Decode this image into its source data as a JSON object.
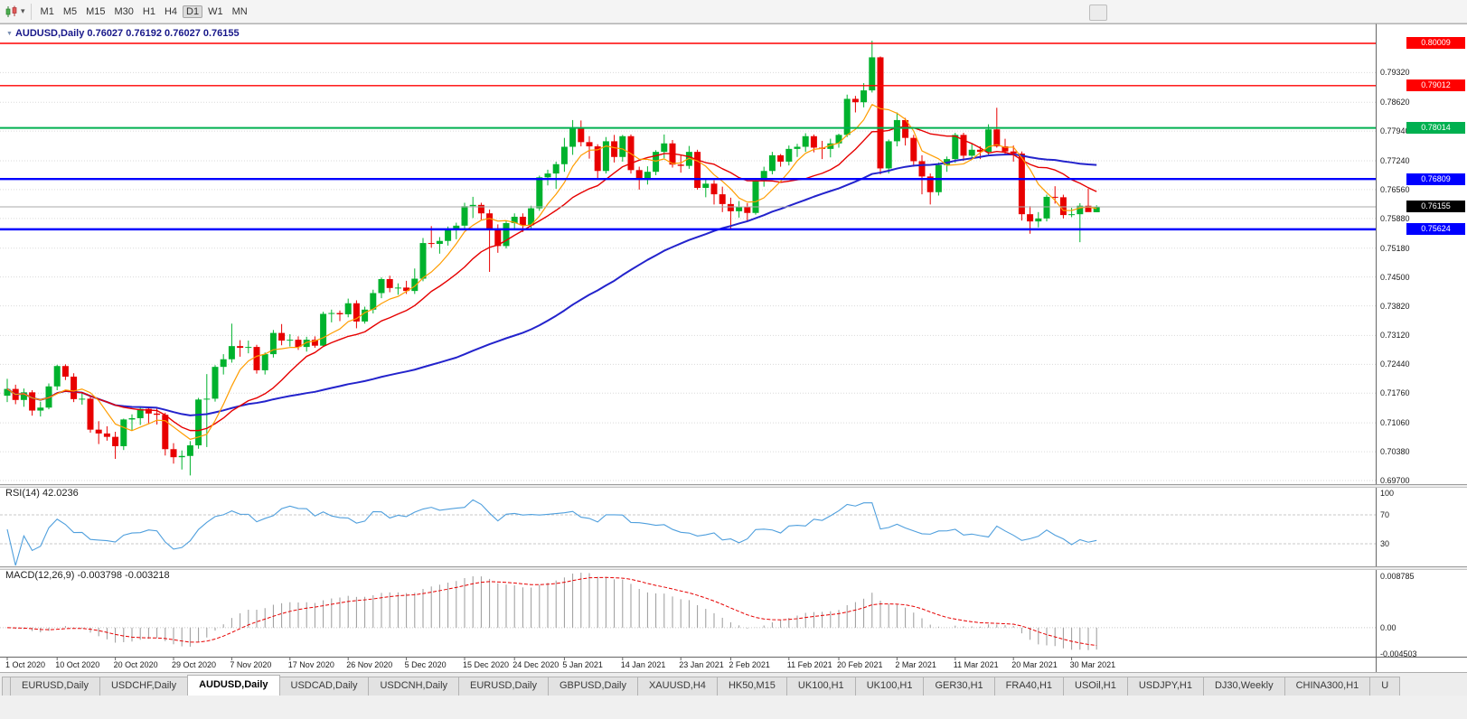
{
  "toolbar": {
    "periods": [
      "M1",
      "M5",
      "M15",
      "M30",
      "H1",
      "H4",
      "D1",
      "W1",
      "MN"
    ],
    "active": "D1"
  },
  "header": {
    "symbol_title": "AUDUSD,Daily",
    "ohlc": "0.76027 0.76192 0.76027 0.76155"
  },
  "chart_data": {
    "type": "candlestick",
    "symbol": "AUDUSD",
    "timeframe": "Daily",
    "ohlc_current": {
      "open": 0.76027,
      "high": 0.76192,
      "low": 0.76027,
      "close": 0.76155
    },
    "y_ticks": [
      "0.79320",
      "0.78620",
      "0.77940",
      "0.77240",
      "0.76560",
      "0.75880",
      "0.75180",
      "0.74500",
      "0.73820",
      "0.73120",
      "0.72440",
      "0.71760",
      "0.71060",
      "0.70380",
      "0.69700"
    ],
    "x_labels": [
      {
        "i": 0,
        "label": "1 Oct 2020"
      },
      {
        "i": 6,
        "label": "10 Oct 2020"
      },
      {
        "i": 13,
        "label": "20 Oct 2020"
      },
      {
        "i": 20,
        "label": "29 Oct 2020"
      },
      {
        "i": 27,
        "label": "7 Nov 2020"
      },
      {
        "i": 34,
        "label": "17 Nov 2020"
      },
      {
        "i": 41,
        "label": "26 Nov 2020"
      },
      {
        "i": 48,
        "label": "5 Dec 2020"
      },
      {
        "i": 55,
        "label": "15 Dec 2020"
      },
      {
        "i": 61,
        "label": "24 Dec 2020"
      },
      {
        "i": 67,
        "label": "5 Jan 2021"
      },
      {
        "i": 74,
        "label": "14 Jan 2021"
      },
      {
        "i": 81,
        "label": "23 Jan 2021"
      },
      {
        "i": 87,
        "label": "2 Feb 2021"
      },
      {
        "i": 94,
        "label": "11 Feb 2021"
      },
      {
        "i": 100,
        "label": "20 Feb 2021"
      },
      {
        "i": 107,
        "label": "2 Mar 2021"
      },
      {
        "i": 114,
        "label": "11 Mar 2021"
      },
      {
        "i": 121,
        "label": "20 Mar 2021"
      },
      {
        "i": 128,
        "label": "30 Mar 2021"
      }
    ],
    "hlines": [
      {
        "price": 0.80009,
        "label": "0.80009",
        "color": "#ff0000"
      },
      {
        "price": 0.79012,
        "label": "0.79012",
        "color": "#ff0000"
      },
      {
        "price": 0.78014,
        "label": "0.78014",
        "color": "#00b050"
      },
      {
        "price": 0.76809,
        "label": "0.76809",
        "color": "#0000ff"
      },
      {
        "price": 0.75624,
        "label": "0.75624",
        "color": "#0000ff"
      }
    ],
    "current_price": {
      "value": 0.76155,
      "label": "0.76155",
      "color": "#000000"
    },
    "moving_averages": [
      {
        "name": "fast",
        "period": 6,
        "color": "#ff9d00"
      },
      {
        "name": "medium",
        "period": 14,
        "color": "#e60000"
      },
      {
        "name": "slow",
        "period": 55,
        "color": "#2323cc"
      }
    ],
    "colors": {
      "bull": "#00b22d",
      "bear": "#e80000",
      "grid": "#dadada"
    },
    "candles": [
      [
        0.717,
        0.721,
        0.7155,
        0.7186
      ],
      [
        0.7186,
        0.7196,
        0.715,
        0.716
      ],
      [
        0.716,
        0.7187,
        0.7144,
        0.7178
      ],
      [
        0.7178,
        0.7183,
        0.7123,
        0.7135
      ],
      [
        0.7135,
        0.7156,
        0.7121,
        0.7142
      ],
      [
        0.7142,
        0.7199,
        0.7138,
        0.7192
      ],
      [
        0.7192,
        0.7243,
        0.7183,
        0.724
      ],
      [
        0.724,
        0.7244,
        0.7207,
        0.7215
      ],
      [
        0.7215,
        0.7223,
        0.7155,
        0.7162
      ],
      [
        0.7162,
        0.7176,
        0.7149,
        0.7163
      ],
      [
        0.7163,
        0.717,
        0.7083,
        0.709
      ],
      [
        0.709,
        0.711,
        0.7056,
        0.7081
      ],
      [
        0.7081,
        0.7098,
        0.7064,
        0.7073
      ],
      [
        0.7073,
        0.7085,
        0.7021,
        0.7051
      ],
      [
        0.7051,
        0.7116,
        0.7042,
        0.7114
      ],
      [
        0.7114,
        0.7126,
        0.7088,
        0.7117
      ],
      [
        0.7117,
        0.7143,
        0.7101,
        0.7139
      ],
      [
        0.7139,
        0.7144,
        0.7105,
        0.7128
      ],
      [
        0.7128,
        0.714,
        0.7102,
        0.7125
      ],
      [
        0.7125,
        0.713,
        0.7029,
        0.7044
      ],
      [
        0.7044,
        0.7058,
        0.701,
        0.7025
      ],
      [
        0.7025,
        0.7041,
        0.6996,
        0.7028
      ],
      [
        0.7028,
        0.7063,
        0.6982,
        0.7053
      ],
      [
        0.7053,
        0.7165,
        0.7045,
        0.7161
      ],
      [
        0.7161,
        0.7221,
        0.7049,
        0.7163
      ],
      [
        0.7163,
        0.7242,
        0.7156,
        0.7238
      ],
      [
        0.7238,
        0.7268,
        0.722,
        0.7256
      ],
      [
        0.7256,
        0.734,
        0.7248,
        0.7287
      ],
      [
        0.7287,
        0.7301,
        0.7262,
        0.7283
      ],
      [
        0.7283,
        0.73,
        0.727,
        0.7285
      ],
      [
        0.7285,
        0.729,
        0.7222,
        0.723
      ],
      [
        0.723,
        0.7272,
        0.722,
        0.7268
      ],
      [
        0.7268,
        0.7325,
        0.726,
        0.7318
      ],
      [
        0.7318,
        0.7339,
        0.7289,
        0.73
      ],
      [
        0.73,
        0.7315,
        0.7286,
        0.7302
      ],
      [
        0.7302,
        0.731,
        0.7278,
        0.7285
      ],
      [
        0.7285,
        0.7309,
        0.7274,
        0.7302
      ],
      [
        0.7302,
        0.731,
        0.7283,
        0.7288
      ],
      [
        0.7288,
        0.7368,
        0.7285,
        0.7363
      ],
      [
        0.7363,
        0.7373,
        0.7343,
        0.7365
      ],
      [
        0.7365,
        0.7371,
        0.7346,
        0.7362
      ],
      [
        0.7362,
        0.7399,
        0.7355,
        0.7388
      ],
      [
        0.7388,
        0.7395,
        0.7329,
        0.7345
      ],
      [
        0.7345,
        0.738,
        0.734,
        0.7373
      ],
      [
        0.7373,
        0.742,
        0.7364,
        0.7412
      ],
      [
        0.7412,
        0.7449,
        0.74,
        0.7445
      ],
      [
        0.7445,
        0.7453,
        0.7414,
        0.7424
      ],
      [
        0.7424,
        0.7435,
        0.7408,
        0.7425
      ],
      [
        0.7425,
        0.7441,
        0.741,
        0.7417
      ],
      [
        0.7417,
        0.747,
        0.741,
        0.7446
      ],
      [
        0.7446,
        0.7542,
        0.744,
        0.753
      ],
      [
        0.753,
        0.757,
        0.7519,
        0.7528
      ],
      [
        0.7528,
        0.7544,
        0.7505,
        0.7535
      ],
      [
        0.7535,
        0.7569,
        0.7524,
        0.756
      ],
      [
        0.756,
        0.7578,
        0.7539,
        0.7571
      ],
      [
        0.7571,
        0.7625,
        0.756,
        0.7617
      ],
      [
        0.7617,
        0.7639,
        0.7589,
        0.762
      ],
      [
        0.762,
        0.7625,
        0.7585,
        0.76
      ],
      [
        0.76,
        0.7609,
        0.7462,
        0.756
      ],
      [
        0.756,
        0.7574,
        0.7507,
        0.7523
      ],
      [
        0.7523,
        0.7582,
        0.7517,
        0.7577
      ],
      [
        0.7577,
        0.76,
        0.7564,
        0.7592
      ],
      [
        0.7592,
        0.76,
        0.7556,
        0.7572
      ],
      [
        0.7572,
        0.7618,
        0.7565,
        0.7612
      ],
      [
        0.7612,
        0.7689,
        0.7606,
        0.7685
      ],
      [
        0.7685,
        0.7703,
        0.7666,
        0.7694
      ],
      [
        0.7694,
        0.7722,
        0.7658,
        0.7716
      ],
      [
        0.7716,
        0.7778,
        0.7698,
        0.7757
      ],
      [
        0.7757,
        0.782,
        0.7738,
        0.78
      ],
      [
        0.78,
        0.7819,
        0.7758,
        0.7768
      ],
      [
        0.7768,
        0.7782,
        0.7729,
        0.7758
      ],
      [
        0.7758,
        0.7763,
        0.7679,
        0.77
      ],
      [
        0.77,
        0.778,
        0.7694,
        0.777
      ],
      [
        0.777,
        0.7785,
        0.772,
        0.7733
      ],
      [
        0.7733,
        0.7785,
        0.7722,
        0.7782
      ],
      [
        0.7782,
        0.7786,
        0.7694,
        0.7702
      ],
      [
        0.7702,
        0.771,
        0.7656,
        0.7679
      ],
      [
        0.7679,
        0.7711,
        0.7668,
        0.7698
      ],
      [
        0.7698,
        0.7749,
        0.769,
        0.7745
      ],
      [
        0.7745,
        0.7786,
        0.773,
        0.7765
      ],
      [
        0.7765,
        0.7773,
        0.7708,
        0.7715
      ],
      [
        0.7715,
        0.7737,
        0.7696,
        0.7712
      ],
      [
        0.7712,
        0.7759,
        0.7705,
        0.7745
      ],
      [
        0.7745,
        0.775,
        0.7656,
        0.766
      ],
      [
        0.766,
        0.7683,
        0.7638,
        0.767
      ],
      [
        0.767,
        0.7678,
        0.7621,
        0.7645
      ],
      [
        0.7645,
        0.7663,
        0.7603,
        0.7622
      ],
      [
        0.7622,
        0.7637,
        0.7563,
        0.7605
      ],
      [
        0.7605,
        0.7629,
        0.759,
        0.7616
      ],
      [
        0.7616,
        0.7624,
        0.7581,
        0.7601
      ],
      [
        0.7601,
        0.7679,
        0.7597,
        0.7676
      ],
      [
        0.7676,
        0.771,
        0.7663,
        0.77
      ],
      [
        0.77,
        0.7745,
        0.7692,
        0.7737
      ],
      [
        0.7737,
        0.774,
        0.771,
        0.7722
      ],
      [
        0.7722,
        0.776,
        0.7713,
        0.7752
      ],
      [
        0.7752,
        0.7764,
        0.7733,
        0.7757
      ],
      [
        0.7757,
        0.7789,
        0.7745,
        0.7782
      ],
      [
        0.7782,
        0.7786,
        0.7744,
        0.7755
      ],
      [
        0.7755,
        0.7771,
        0.7728,
        0.7752
      ],
      [
        0.7752,
        0.7776,
        0.7732,
        0.7765
      ],
      [
        0.7765,
        0.7788,
        0.7755,
        0.7785
      ],
      [
        0.7785,
        0.788,
        0.778,
        0.787
      ],
      [
        0.787,
        0.7877,
        0.7838,
        0.7862
      ],
      [
        0.7862,
        0.7907,
        0.785,
        0.789
      ],
      [
        0.789,
        0.8007,
        0.7885,
        0.7968
      ],
      [
        0.7968,
        0.797,
        0.7692,
        0.7706
      ],
      [
        0.7706,
        0.7774,
        0.7694,
        0.777
      ],
      [
        0.777,
        0.7838,
        0.7758,
        0.782
      ],
      [
        0.782,
        0.7825,
        0.776,
        0.7778
      ],
      [
        0.7778,
        0.7785,
        0.771,
        0.7723
      ],
      [
        0.7723,
        0.7737,
        0.7645,
        0.7687
      ],
      [
        0.7687,
        0.7694,
        0.7621,
        0.765
      ],
      [
        0.765,
        0.772,
        0.7642,
        0.7714
      ],
      [
        0.7714,
        0.7734,
        0.7698,
        0.7728
      ],
      [
        0.7728,
        0.779,
        0.7719,
        0.7785
      ],
      [
        0.7785,
        0.779,
        0.7724,
        0.7736
      ],
      [
        0.7736,
        0.7764,
        0.7726,
        0.775
      ],
      [
        0.775,
        0.7758,
        0.7728,
        0.7745
      ],
      [
        0.7745,
        0.781,
        0.7738,
        0.7798
      ],
      [
        0.7798,
        0.7849,
        0.7755,
        0.7758
      ],
      [
        0.7758,
        0.7776,
        0.7739,
        0.7746
      ],
      [
        0.7746,
        0.776,
        0.7722,
        0.7741
      ],
      [
        0.7741,
        0.7746,
        0.7583,
        0.7598
      ],
      [
        0.7598,
        0.7617,
        0.7552,
        0.7581
      ],
      [
        0.7581,
        0.7603,
        0.7567,
        0.7588
      ],
      [
        0.7588,
        0.7644,
        0.7581,
        0.7639
      ],
      [
        0.7639,
        0.7664,
        0.7623,
        0.7638
      ],
      [
        0.7638,
        0.7644,
        0.7588,
        0.7596
      ],
      [
        0.7596,
        0.7613,
        0.7591,
        0.7598
      ],
      [
        0.7598,
        0.7624,
        0.7532,
        0.7618
      ],
      [
        0.7618,
        0.7658,
        0.761,
        0.7603
      ],
      [
        0.76027,
        0.76192,
        0.76027,
        0.76155
      ]
    ]
  },
  "rsi_panel": {
    "name": "RSI(14)",
    "value": "42.0236",
    "period": 14,
    "levels": [
      70,
      30
    ],
    "scale": [
      {
        "v": 100,
        "label": "100"
      },
      {
        "v": 70,
        "label": "70"
      },
      {
        "v": 30,
        "label": "30"
      }
    ],
    "color": "#4f9fdd"
  },
  "macd_panel": {
    "name": "MACD(12,26,9)",
    "values": "-0.003798 -0.003218",
    "fast": 12,
    "slow": 26,
    "signal": 9,
    "scale": [
      {
        "v": 0.008785,
        "label": "0.008785"
      },
      {
        "v": 0,
        "label": "0.00"
      },
      {
        "v": -0.004503,
        "label": "-0.004503"
      }
    ],
    "hist_color": "#9a9a9a",
    "signal_color": "#e60000"
  },
  "tabs": [
    {
      "label": "EURUSD,Daily"
    },
    {
      "label": "USDCHF,Daily"
    },
    {
      "label": "AUDUSD,Daily",
      "active": true
    },
    {
      "label": "USDCAD,Daily"
    },
    {
      "label": "USDCNH,Daily"
    },
    {
      "label": "EURUSD,Daily"
    },
    {
      "label": "GBPUSD,Daily"
    },
    {
      "label": "XAUUSD,H4"
    },
    {
      "label": "HK50,M15"
    },
    {
      "label": "UK100,H1"
    },
    {
      "label": "UK100,H1"
    },
    {
      "label": "GER30,H1"
    },
    {
      "label": "FRA40,H1"
    },
    {
      "label": "USOil,H1"
    },
    {
      "label": "USDJPY,H1"
    },
    {
      "label": "DJ30,Weekly"
    },
    {
      "label": "CHINA300,H1"
    },
    {
      "label": "U"
    }
  ]
}
